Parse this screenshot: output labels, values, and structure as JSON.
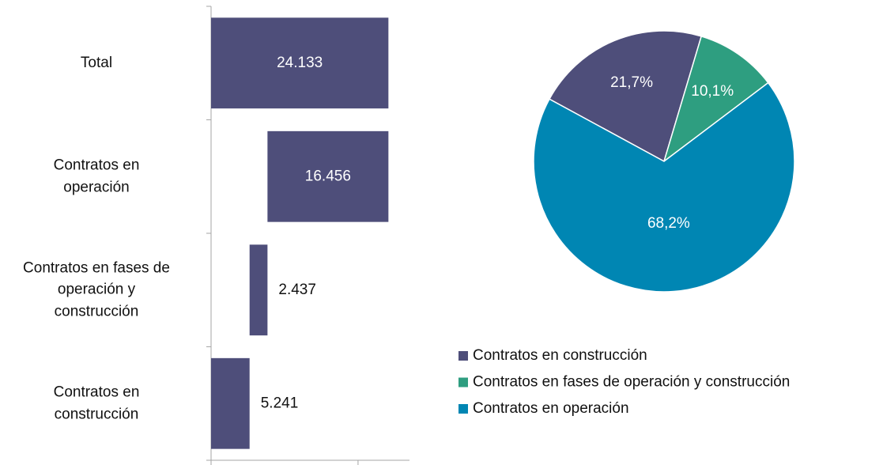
{
  "chart_data": [
    {
      "type": "waterfall",
      "categories": [
        "Contratos en\nconstrucción",
        "Contratos en fases de\noperación y\nconstrucción",
        "Contratos en\noperación",
        "Total"
      ],
      "values": [
        5241,
        2437,
        16456,
        24133
      ],
      "value_labels": [
        "5.241",
        "2.437",
        "16.456",
        "24.133"
      ],
      "is_total": [
        false,
        false,
        false,
        true
      ],
      "color": "#4e4e7a",
      "xlim": [
        0,
        27000
      ],
      "xticks": [
        0,
        20000
      ]
    },
    {
      "type": "pie",
      "series": [
        {
          "name": "Contratos en construcción",
          "color": "#4e4e7a",
          "values": [
            21.7
          ],
          "value_labels": [
            "21,7%"
          ]
        },
        {
          "name": "Contratos en fases de operación y construcción",
          "color": "#2e9e80",
          "values": [
            10.1
          ],
          "value_labels": [
            "10,1%"
          ]
        },
        {
          "name": "Contratos en operación",
          "color": "#0086b3",
          "values": [
            68.2
          ],
          "value_labels": [
            "68,2%"
          ]
        }
      ]
    }
  ]
}
